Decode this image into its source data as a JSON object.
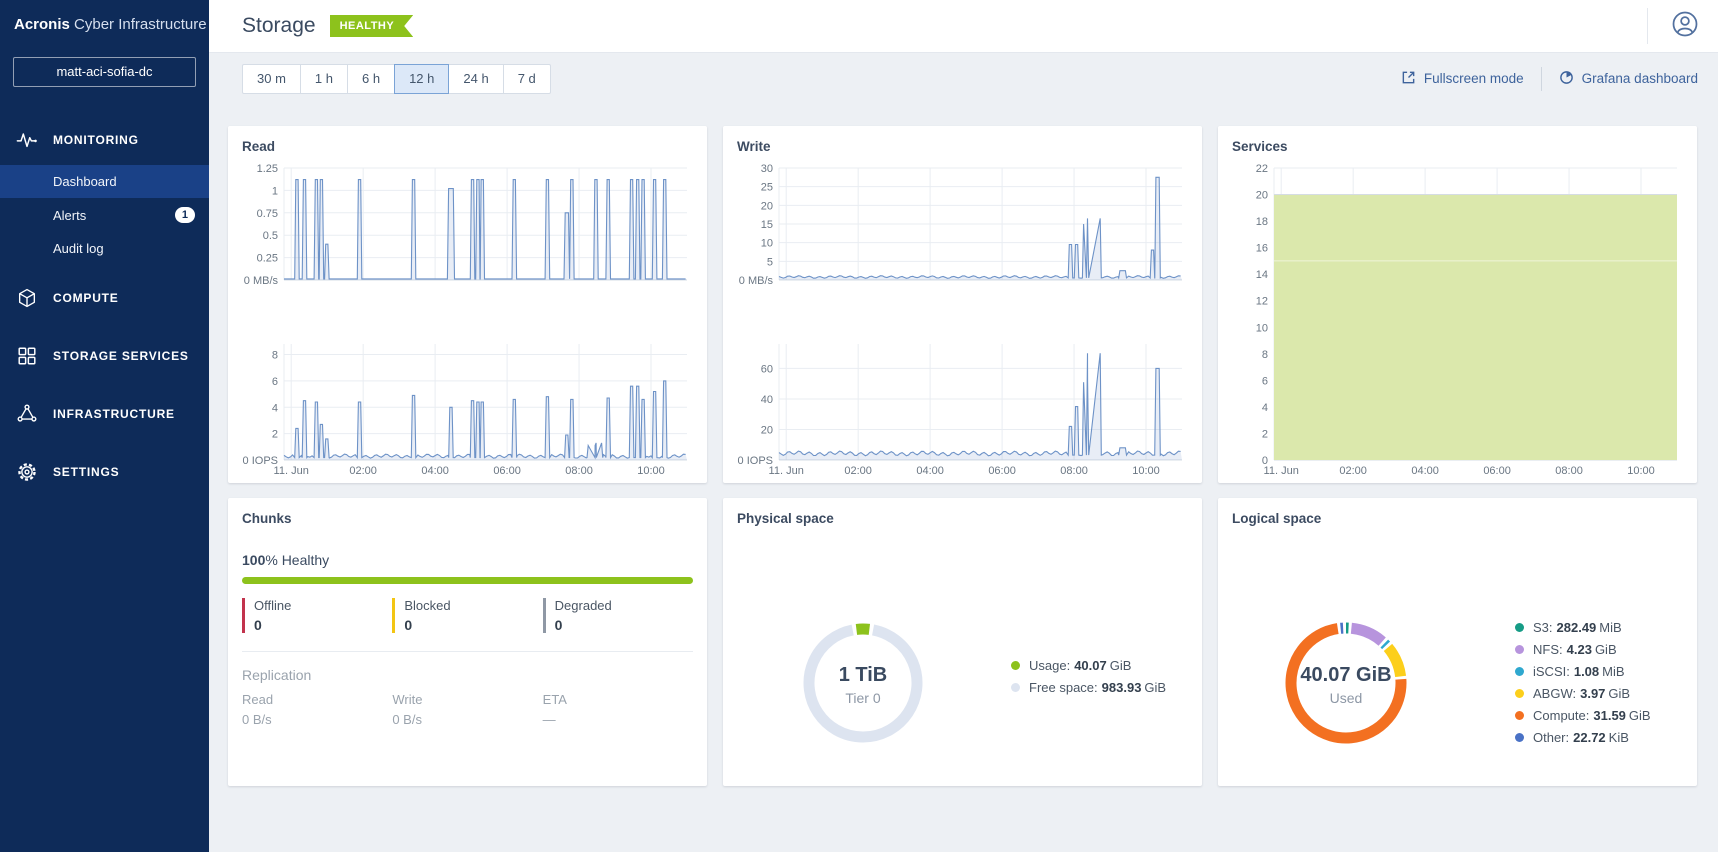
{
  "brand": {
    "bold": "Acronis",
    "light": "Cyber Infrastructure"
  },
  "sidebar": {
    "cluster_name": "matt-aci-sofia-dc",
    "sections": [
      {
        "label": "MONITORING",
        "icon": "monitoring-icon",
        "children": [
          {
            "label": "Dashboard",
            "active": true
          },
          {
            "label": "Alerts",
            "badge": "1"
          },
          {
            "label": "Audit log"
          }
        ]
      },
      {
        "label": "COMPUTE",
        "icon": "compute-icon"
      },
      {
        "label": "STORAGE SERVICES",
        "icon": "storage-services-icon"
      },
      {
        "label": "INFRASTRUCTURE",
        "icon": "infrastructure-icon"
      },
      {
        "label": "SETTINGS",
        "icon": "settings-icon"
      }
    ]
  },
  "header": {
    "title": "Storage",
    "status": "HEALTHY",
    "status_color": "#8dc21c"
  },
  "toolbar": {
    "time_ranges": [
      {
        "label": "30 m"
      },
      {
        "label": "1 h"
      },
      {
        "label": "6 h"
      },
      {
        "label": "12 h",
        "selected": true
      },
      {
        "label": "24 h"
      },
      {
        "label": "7 d"
      }
    ],
    "fullscreen": "Fullscreen mode",
    "grafana": "Grafana dashboard"
  },
  "chart_data": [
    {
      "type": "line",
      "title": "Read",
      "x_range": [
        -0.2,
        11.0
      ],
      "x_ticks": [
        {
          "v": 0,
          "label": "11. Jun"
        },
        {
          "v": 2,
          "label": "02:00"
        },
        {
          "v": 4,
          "label": "04:00"
        },
        {
          "v": 6,
          "label": "06:00"
        },
        {
          "v": 8,
          "label": "08:00"
        },
        {
          "v": 10,
          "label": "10:00"
        }
      ],
      "series_color": "#6d92c7",
      "subcharts": [
        {
          "name": "read_mb_s",
          "unit_label": "0 MB/s",
          "y_range": [
            0,
            1.25
          ],
          "y_ticks": [
            0.25,
            0.5,
            0.75,
            1,
            1.25
          ],
          "baseline": 0.012,
          "noise": 0,
          "pulses": [
            [
              0.16,
              1.12
            ],
            [
              0.37,
              1.12
            ],
            [
              0.7,
              1.12
            ],
            [
              0.84,
              1.12
            ],
            [
              0.99,
              0.4
            ],
            [
              1.9,
              1.12
            ],
            [
              3.4,
              1.12
            ],
            [
              4.44,
              1.02,
              0.07
            ],
            [
              5.04,
              1.12
            ],
            [
              5.19,
              1.12
            ],
            [
              5.31,
              1.12
            ],
            [
              6.2,
              1.12
            ],
            [
              7.12,
              1.12
            ],
            [
              7.66,
              0.75,
              0.05
            ],
            [
              7.8,
              1.12
            ],
            [
              8.47,
              1.12
            ],
            [
              8.81,
              1.12
            ],
            [
              9.46,
              1.12
            ],
            [
              9.63,
              1.12
            ],
            [
              9.78,
              1.12
            ],
            [
              10.1,
              1.12
            ],
            [
              10.38,
              1.12
            ]
          ]
        },
        {
          "name": "read_iops",
          "unit_label": "0 IOPS",
          "y_range": [
            0,
            8.8
          ],
          "y_ticks": [
            2,
            4,
            6,
            8
          ],
          "baseline": 0.18,
          "noise": 0.22,
          "pulses": [
            [
              0.16,
              2.4
            ],
            [
              0.37,
              4.5
            ],
            [
              0.7,
              4.4
            ],
            [
              0.84,
              2.7
            ],
            [
              0.99,
              1.6
            ],
            [
              1.9,
              4.4
            ],
            [
              3.4,
              4.9
            ],
            [
              4.44,
              4.0
            ],
            [
              5.04,
              4.5
            ],
            [
              5.19,
              4.4
            ],
            [
              5.31,
              4.4
            ],
            [
              6.2,
              4.6
            ],
            [
              7.12,
              4.8
            ],
            [
              7.66,
              1.9
            ],
            [
              7.8,
              4.6
            ],
            [
              8.35,
              1.1,
              0.1
            ],
            [
              8.55,
              1.3,
              0.08
            ],
            [
              8.81,
              4.7
            ],
            [
              9.46,
              5.6
            ],
            [
              9.63,
              5.6
            ],
            [
              9.78,
              4.6
            ],
            [
              10.1,
              5.2
            ],
            [
              10.38,
              6.0
            ]
          ]
        }
      ]
    },
    {
      "type": "line",
      "title": "Write",
      "x_range": [
        -0.2,
        11.0
      ],
      "x_ticks": [
        {
          "v": 0,
          "label": "11. Jun"
        },
        {
          "v": 2,
          "label": "02:00"
        },
        {
          "v": 4,
          "label": "04:00"
        },
        {
          "v": 6,
          "label": "06:00"
        },
        {
          "v": 8,
          "label": "08:00"
        },
        {
          "v": 10,
          "label": "10:00"
        }
      ],
      "series_color": "#6d92c7",
      "subcharts": [
        {
          "name": "write_mb_s",
          "unit_label": "0 MB/s",
          "y_range": [
            0,
            30
          ],
          "y_ticks": [
            5,
            10,
            15,
            20,
            25,
            30
          ],
          "baseline": 0.55,
          "noise": 0.5,
          "pulses": [
            [
              7.9,
              9.5
            ],
            [
              8.07,
              9.5
            ],
            [
              8.32,
              15,
              0.06
            ],
            [
              8.55,
              16.5,
              0.18
            ],
            [
              9.35,
              2.5,
              0.08
            ],
            [
              10.18,
              8
            ],
            [
              10.32,
              27.5,
              0.05
            ]
          ]
        },
        {
          "name": "write_iops",
          "unit_label": "0 IOPS",
          "y_range": [
            0,
            76
          ],
          "y_ticks": [
            20,
            40,
            60
          ],
          "baseline": 3.2,
          "noise": 2.2,
          "pulses": [
            [
              7.9,
              22
            ],
            [
              8.07,
              35
            ],
            [
              8.32,
              51,
              0.06
            ],
            [
              8.55,
              70,
              0.18
            ],
            [
              9.35,
              8,
              0.08
            ],
            [
              10.32,
              60,
              0.05
            ]
          ]
        }
      ]
    },
    {
      "type": "area",
      "title": "Services",
      "x_range": [
        -0.2,
        11.0
      ],
      "x_ticks": [
        {
          "v": 0,
          "label": "11. Jun"
        },
        {
          "v": 2,
          "label": "02:00"
        },
        {
          "v": 4,
          "label": "04:00"
        },
        {
          "v": 6,
          "label": "06:00"
        },
        {
          "v": 8,
          "label": "08:00"
        },
        {
          "v": 10,
          "label": "10:00"
        }
      ],
      "y_range": [
        0,
        22
      ],
      "y_ticks": [
        0,
        2,
        4,
        6,
        8,
        10,
        12,
        14,
        16,
        18,
        20,
        22
      ],
      "value": 20,
      "boundary": 15,
      "fill": "#dbe8ac"
    }
  ],
  "chunks": {
    "title": "Chunks",
    "healthy_value": "100",
    "healthy_suffix": "% Healthy",
    "bar_color": "#8dc21c",
    "stats": [
      {
        "label": "Offline",
        "value": "0",
        "color": "#c2334d"
      },
      {
        "label": "Blocked",
        "value": "0",
        "color": "#f3c513"
      },
      {
        "label": "Degraded",
        "value": "0",
        "color": "#8f98a5"
      }
    ],
    "replication": {
      "title": "Replication",
      "cols": [
        {
          "label": "Read",
          "value": "0 B/s"
        },
        {
          "label": "Write",
          "value": "0 B/s"
        },
        {
          "label": "ETA",
          "value": "—"
        }
      ]
    }
  },
  "physical_space": {
    "title": "Physical space",
    "center_value": "1 TiB",
    "center_label": "Tier 0",
    "total_gib": 1024,
    "legend": [
      {
        "label": "Usage",
        "value": "40.07",
        "unit": "GiB",
        "color": "#8dc21c",
        "amount_gib": 40.07
      },
      {
        "label": "Free space",
        "value": "983.93",
        "unit": "GiB",
        "color": "#dde4f0",
        "amount_gib": 983.93
      }
    ]
  },
  "logical_space": {
    "title": "Logical space",
    "center_value": "40.07 GiB",
    "center_label": "Used",
    "total_gib": 40.07,
    "legend": [
      {
        "label": "S3",
        "value": "282.49",
        "unit": "MiB",
        "color": "#169c86",
        "amount_gib": 0.276
      },
      {
        "label": "NFS",
        "value": "4.23",
        "unit": "GiB",
        "color": "#b794dd",
        "amount_gib": 4.23
      },
      {
        "label": "iSCSI",
        "value": "1.08",
        "unit": "MiB",
        "color": "#2fa8cf",
        "amount_gib": 0.0011
      },
      {
        "label": "ABGW",
        "value": "3.97",
        "unit": "GiB",
        "color": "#fccf1b",
        "amount_gib": 3.97
      },
      {
        "label": "Compute",
        "value": "31.59",
        "unit": "GiB",
        "color": "#f37021",
        "amount_gib": 31.59
      },
      {
        "label": "Other",
        "value": "22.72",
        "unit": "KiB",
        "color": "#4a72c6",
        "amount_gib": 2.17e-05
      }
    ]
  }
}
